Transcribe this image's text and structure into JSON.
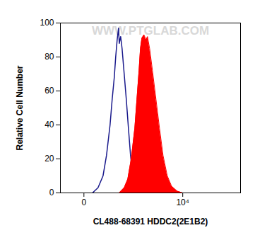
{
  "chart_data": {
    "type": "histogram",
    "log": "x",
    "xlabel": "CL488-68391 HDDC2(2E1B2)",
    "ylabel": "Relative Cell Number",
    "xlim": [
      -200,
      150000
    ],
    "xticks": [
      {
        "value": 0,
        "label": "0"
      },
      {
        "value": 10000,
        "label": "10⁴"
      }
    ],
    "ylim": [
      0,
      100
    ],
    "yticks": [
      0,
      20,
      40,
      60,
      80,
      100
    ],
    "annotations": [
      {
        "text": "WWW.PTGLAB.COM"
      }
    ],
    "series": [
      {
        "type": "line",
        "color": "#1a1a8c",
        "x": [
          49,
          93,
          144,
          187,
          239,
          274,
          313,
          341,
          372,
          404,
          421,
          456,
          494,
          556,
          624,
          700,
          783,
          875,
          976,
          1128
        ],
        "values": [
          0,
          3,
          10,
          22,
          40,
          55,
          68,
          80,
          90,
          97,
          88,
          92,
          85,
          70,
          55,
          38,
          22,
          10,
          3,
          0
        ]
      },
      {
        "type": "area",
        "color": "#ff0000",
        "x": [
          421,
          556,
          674,
          812,
          976,
          1088,
          1212,
          1301,
          1397,
          1553,
          1725,
          1849,
          2052,
          2356,
          2797,
          3316,
          3929,
          4811,
          5886,
          7695,
          10000
        ],
        "values": [
          0,
          3,
          8,
          20,
          38,
          55,
          72,
          85,
          91,
          93,
          90,
          92,
          85,
          72,
          55,
          38,
          22,
          10,
          4,
          1,
          0
        ]
      }
    ]
  }
}
